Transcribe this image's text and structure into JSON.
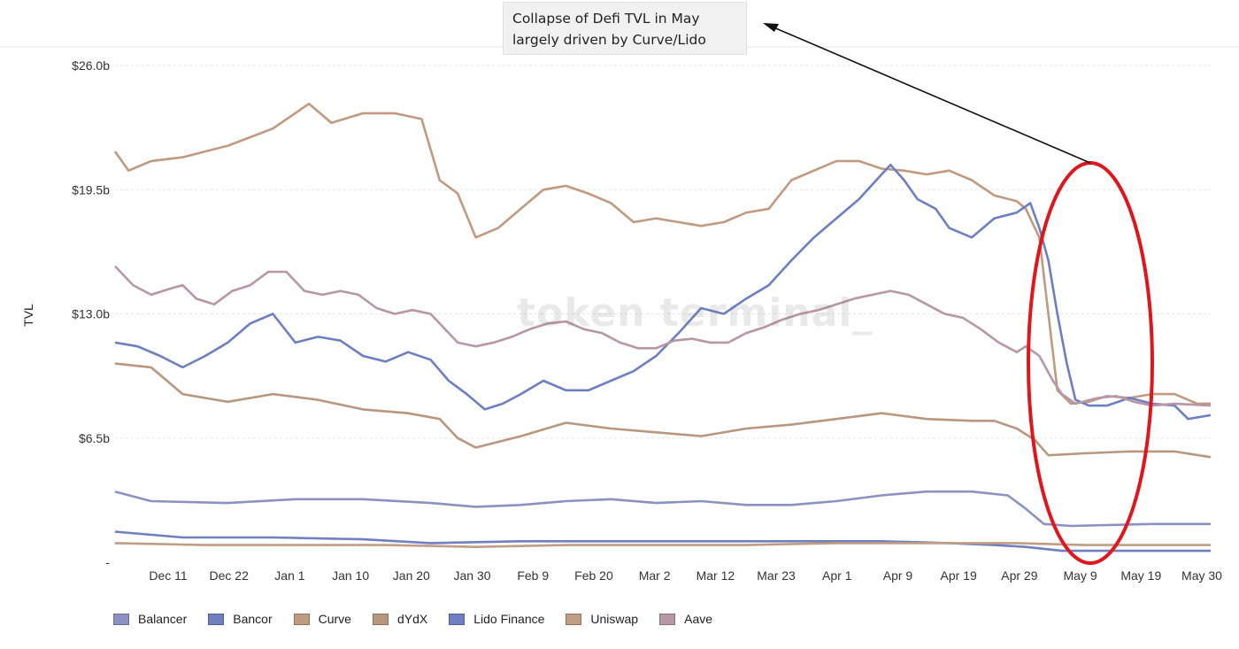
{
  "chart_data": {
    "type": "line",
    "title": "",
    "xlabel": "",
    "ylabel": "TVL",
    "ylim": [
      0,
      26.0
    ],
    "yticks": [
      "-",
      "$6.5b",
      "$13.0b",
      "$19.5b",
      "$26.0b"
    ],
    "xticks": [
      "Dec 11",
      "Dec 22",
      "Jan 1",
      "Jan 10",
      "Jan 20",
      "Jan 30",
      "Feb 9",
      "Feb 20",
      "Mar 2",
      "Mar 12",
      "Mar 23",
      "Apr 1",
      "Apr 9",
      "Apr 19",
      "Apr 29",
      "May 9",
      "May 19",
      "May 30"
    ],
    "grid": "horizontal",
    "legend_position": "bottom-left",
    "watermark": "token terminal_",
    "annotation": {
      "lines": [
        "Collapse of Defi TVL in May",
        "largely driven by Curve/Lido"
      ],
      "arrow": true,
      "highlight": "red-ellipse"
    },
    "x_domain": [
      "Nov 30",
      "May 30"
    ],
    "series": [
      {
        "name": "Balancer",
        "color": "#8b92c2",
        "points": [
          [
            0,
            3.7
          ],
          [
            8,
            3.2
          ],
          [
            25,
            3.1
          ],
          [
            40,
            3.3
          ],
          [
            55,
            3.3
          ],
          [
            70,
            3.1
          ],
          [
            80,
            2.9
          ],
          [
            90,
            3.0
          ],
          [
            100,
            3.2
          ],
          [
            110,
            3.3
          ],
          [
            120,
            3.1
          ],
          [
            130,
            3.2
          ],
          [
            140,
            3.0
          ],
          [
            150,
            3.0
          ],
          [
            160,
            3.2
          ],
          [
            170,
            3.5
          ],
          [
            180,
            3.7
          ],
          [
            190,
            3.7
          ],
          [
            198,
            3.5
          ],
          [
            202,
            2.8
          ],
          [
            206,
            2.0
          ],
          [
            212,
            1.9
          ],
          [
            230,
            2.0
          ],
          [
            243,
            2.0
          ]
        ]
      },
      {
        "name": "Bancor",
        "color": "#6f7fc0",
        "points": [
          [
            0,
            1.6
          ],
          [
            15,
            1.3
          ],
          [
            35,
            1.3
          ],
          [
            55,
            1.2
          ],
          [
            70,
            1.0
          ],
          [
            90,
            1.1
          ],
          [
            110,
            1.1
          ],
          [
            130,
            1.1
          ],
          [
            150,
            1.1
          ],
          [
            170,
            1.1
          ],
          [
            185,
            1.0
          ],
          [
            195,
            0.9
          ],
          [
            202,
            0.8
          ],
          [
            210,
            0.6
          ],
          [
            225,
            0.6
          ],
          [
            243,
            0.6
          ]
        ]
      },
      {
        "name": "Curve",
        "color": "#c09a80",
        "points": [
          [
            0,
            21.5
          ],
          [
            3,
            20.5
          ],
          [
            8,
            21.0
          ],
          [
            15,
            21.2
          ],
          [
            25,
            21.8
          ],
          [
            35,
            22.7
          ],
          [
            43,
            24.0
          ],
          [
            48,
            23.0
          ],
          [
            55,
            23.5
          ],
          [
            62,
            23.5
          ],
          [
            68,
            23.2
          ],
          [
            72,
            20.0
          ],
          [
            76,
            19.3
          ],
          [
            80,
            17.0
          ],
          [
            85,
            17.5
          ],
          [
            90,
            18.5
          ],
          [
            95,
            19.5
          ],
          [
            100,
            19.7
          ],
          [
            105,
            19.3
          ],
          [
            110,
            18.8
          ],
          [
            115,
            17.8
          ],
          [
            120,
            18.0
          ],
          [
            125,
            17.8
          ],
          [
            130,
            17.6
          ],
          [
            135,
            17.8
          ],
          [
            140,
            18.3
          ],
          [
            145,
            18.5
          ],
          [
            150,
            20.0
          ],
          [
            155,
            20.5
          ],
          [
            160,
            21.0
          ],
          [
            165,
            21.0
          ],
          [
            170,
            20.6
          ],
          [
            175,
            20.5
          ],
          [
            180,
            20.3
          ],
          [
            185,
            20.5
          ],
          [
            190,
            20.0
          ],
          [
            195,
            19.2
          ],
          [
            200,
            18.9
          ],
          [
            202,
            18.5
          ],
          [
            205,
            17.0
          ],
          [
            207,
            13.0
          ],
          [
            209,
            9.0
          ],
          [
            212,
            8.3
          ],
          [
            216,
            8.4
          ],
          [
            220,
            8.7
          ],
          [
            225,
            8.6
          ],
          [
            230,
            8.8
          ],
          [
            235,
            8.8
          ],
          [
            240,
            8.3
          ],
          [
            243,
            8.3
          ]
        ]
      },
      {
        "name": "dYdX",
        "color": "#b9977f",
        "points": [
          [
            0,
            10.4
          ],
          [
            8,
            10.2
          ],
          [
            15,
            8.8
          ],
          [
            25,
            8.4
          ],
          [
            35,
            8.8
          ],
          [
            45,
            8.5
          ],
          [
            55,
            8.0
          ],
          [
            65,
            7.8
          ],
          [
            72,
            7.5
          ],
          [
            76,
            6.5
          ],
          [
            80,
            6.0
          ],
          [
            90,
            6.6
          ],
          [
            100,
            7.3
          ],
          [
            110,
            7.0
          ],
          [
            120,
            6.8
          ],
          [
            130,
            6.6
          ],
          [
            140,
            7.0
          ],
          [
            150,
            7.2
          ],
          [
            160,
            7.5
          ],
          [
            170,
            7.8
          ],
          [
            180,
            7.5
          ],
          [
            190,
            7.4
          ],
          [
            195,
            7.4
          ],
          [
            200,
            7.0
          ],
          [
            204,
            6.4
          ],
          [
            207,
            5.6
          ],
          [
            215,
            5.7
          ],
          [
            225,
            5.8
          ],
          [
            235,
            5.8
          ],
          [
            243,
            5.5
          ]
        ]
      },
      {
        "name": "Lido Finance",
        "color": "#6d7fc2",
        "points": [
          [
            0,
            11.5
          ],
          [
            5,
            11.3
          ],
          [
            10,
            10.8
          ],
          [
            15,
            10.2
          ],
          [
            20,
            10.8
          ],
          [
            25,
            11.5
          ],
          [
            30,
            12.5
          ],
          [
            35,
            13.0
          ],
          [
            40,
            11.5
          ],
          [
            45,
            11.8
          ],
          [
            50,
            11.6
          ],
          [
            55,
            10.8
          ],
          [
            60,
            10.5
          ],
          [
            65,
            11.0
          ],
          [
            70,
            10.6
          ],
          [
            74,
            9.5
          ],
          [
            78,
            8.8
          ],
          [
            82,
            8.0
          ],
          [
            86,
            8.3
          ],
          [
            90,
            8.8
          ],
          [
            95,
            9.5
          ],
          [
            100,
            9.0
          ],
          [
            105,
            9.0
          ],
          [
            110,
            9.5
          ],
          [
            115,
            10.0
          ],
          [
            120,
            10.8
          ],
          [
            125,
            12.0
          ],
          [
            130,
            13.3
          ],
          [
            135,
            13.0
          ],
          [
            140,
            13.8
          ],
          [
            145,
            14.5
          ],
          [
            150,
            15.8
          ],
          [
            155,
            17.0
          ],
          [
            160,
            18.0
          ],
          [
            165,
            19.0
          ],
          [
            170,
            20.3
          ],
          [
            172,
            20.8
          ],
          [
            175,
            20.0
          ],
          [
            178,
            19.0
          ],
          [
            182,
            18.5
          ],
          [
            185,
            17.5
          ],
          [
            190,
            17.0
          ],
          [
            195,
            18.0
          ],
          [
            200,
            18.3
          ],
          [
            203,
            18.8
          ],
          [
            205,
            17.5
          ],
          [
            207,
            15.8
          ],
          [
            209,
            13.0
          ],
          [
            211,
            10.5
          ],
          [
            213,
            8.5
          ],
          [
            216,
            8.2
          ],
          [
            220,
            8.2
          ],
          [
            225,
            8.6
          ],
          [
            230,
            8.3
          ],
          [
            235,
            8.2
          ],
          [
            238,
            7.5
          ],
          [
            243,
            7.7
          ]
        ]
      },
      {
        "name": "Uniswap",
        "color": "#c19d84",
        "points": [
          [
            0,
            1.0
          ],
          [
            20,
            0.9
          ],
          [
            40,
            0.9
          ],
          [
            60,
            0.9
          ],
          [
            80,
            0.8
          ],
          [
            100,
            0.9
          ],
          [
            120,
            0.9
          ],
          [
            140,
            0.9
          ],
          [
            160,
            1.0
          ],
          [
            180,
            1.0
          ],
          [
            200,
            1.0
          ],
          [
            215,
            0.9
          ],
          [
            230,
            0.9
          ],
          [
            243,
            0.9
          ]
        ]
      },
      {
        "name": "Aave",
        "color": "#b796a6",
        "points": [
          [
            0,
            15.5
          ],
          [
            4,
            14.5
          ],
          [
            8,
            14.0
          ],
          [
            12,
            14.3
          ],
          [
            15,
            14.5
          ],
          [
            18,
            13.8
          ],
          [
            22,
            13.5
          ],
          [
            26,
            14.2
          ],
          [
            30,
            14.5
          ],
          [
            34,
            15.2
          ],
          [
            38,
            15.2
          ],
          [
            42,
            14.2
          ],
          [
            46,
            14.0
          ],
          [
            50,
            14.2
          ],
          [
            54,
            14.0
          ],
          [
            58,
            13.3
          ],
          [
            62,
            13.0
          ],
          [
            66,
            13.2
          ],
          [
            70,
            13.0
          ],
          [
            72,
            12.5
          ],
          [
            76,
            11.5
          ],
          [
            80,
            11.3
          ],
          [
            84,
            11.5
          ],
          [
            88,
            11.8
          ],
          [
            92,
            12.2
          ],
          [
            96,
            12.5
          ],
          [
            100,
            12.6
          ],
          [
            104,
            12.2
          ],
          [
            108,
            12.0
          ],
          [
            112,
            11.5
          ],
          [
            116,
            11.2
          ],
          [
            120,
            11.2
          ],
          [
            124,
            11.6
          ],
          [
            128,
            11.7
          ],
          [
            132,
            11.5
          ],
          [
            136,
            11.5
          ],
          [
            140,
            12.0
          ],
          [
            144,
            12.3
          ],
          [
            148,
            12.7
          ],
          [
            152,
            13.0
          ],
          [
            156,
            13.2
          ],
          [
            160,
            13.5
          ],
          [
            164,
            13.8
          ],
          [
            168,
            14.0
          ],
          [
            172,
            14.2
          ],
          [
            176,
            14.0
          ],
          [
            180,
            13.5
          ],
          [
            184,
            13.0
          ],
          [
            188,
            12.8
          ],
          [
            192,
            12.2
          ],
          [
            196,
            11.5
          ],
          [
            200,
            11.0
          ],
          [
            202,
            11.3
          ],
          [
            205,
            10.8
          ],
          [
            208,
            9.5
          ],
          [
            210,
            8.8
          ],
          [
            213,
            8.3
          ],
          [
            218,
            8.6
          ],
          [
            222,
            8.7
          ],
          [
            226,
            8.4
          ],
          [
            230,
            8.2
          ],
          [
            235,
            8.3
          ],
          [
            243,
            8.2
          ]
        ]
      }
    ]
  }
}
